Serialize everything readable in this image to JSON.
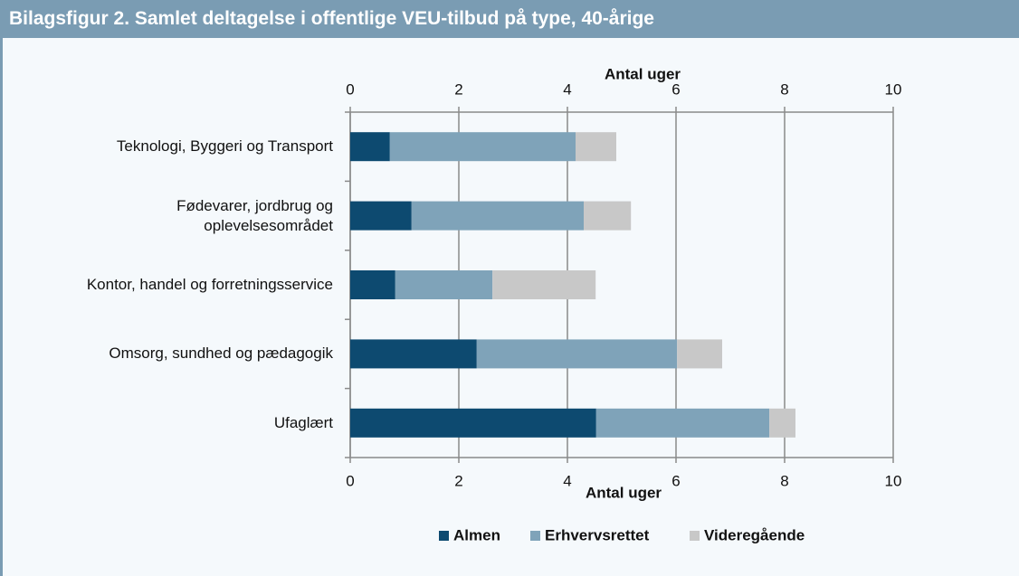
{
  "chart_data": {
    "type": "stacked-barh",
    "title": "Bilagsfigur 2. Samlet deltagelse i offentlige VEU-tilbud på type, 40-årige",
    "xlabel": "Antal uger",
    "categories": [
      "Teknologi, Byggeri og Transport",
      "Fødevarer, jordbrug og oplevelsesområdet",
      "Kontor, handel og forretningsservice",
      "Omsorg, sundhed og pædagogik",
      "Ufaglært"
    ],
    "series": [
      {
        "name": "Almen",
        "color": "#0d4a70",
        "values": [
          0.73,
          1.13,
          0.83,
          2.33,
          4.53
        ]
      },
      {
        "name": "Erhvervsrettet",
        "color": "#7fa3b9",
        "values": [
          3.42,
          3.17,
          1.79,
          3.69,
          3.19
        ]
      },
      {
        "name": "Videregående",
        "color": "#c8c8c8",
        "values": [
          0.75,
          0.87,
          1.9,
          0.83,
          0.48
        ]
      }
    ],
    "xlim": [
      0,
      10
    ],
    "xticks": [
      0,
      2,
      4,
      6,
      8,
      10
    ],
    "grid": true,
    "legend": "bottom"
  }
}
